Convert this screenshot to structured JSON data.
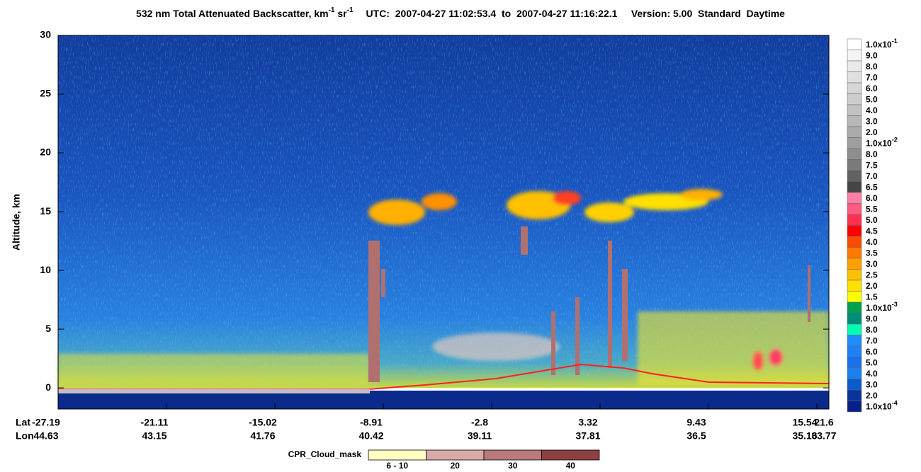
{
  "chart_data": {
    "type": "curtain",
    "title": {
      "text": "532 nm Total Attenuated Backscatter, km",
      "unit_exp": "-1",
      "unit2": " sr",
      "unit2_exp": "-1"
    },
    "subtitle": "UTC:  2007-04-27 11:02:53.4  to  2007-04-27 11:16:22.1     Version: 5.00  Standard  Daytime",
    "y_label": "Altitude, km",
    "ylim": [
      -1.8,
      30
    ],
    "yticks": [
      0,
      5,
      10,
      15,
      20,
      25,
      30
    ],
    "x_row_labels": [
      "Lat",
      "Lon"
    ],
    "x_ticks": [
      {
        "lat": -27.19,
        "lon": 44.63
      },
      {
        "lat": -21.11,
        "lon": 43.15
      },
      {
        "lat": -15.02,
        "lon": 41.76
      },
      {
        "lat": -8.91,
        "lon": 40.42
      },
      {
        "lat": -2.8,
        "lon": 39.11
      },
      {
        "lat": 3.32,
        "lon": 37.81
      },
      {
        "lat": 9.43,
        "lon": 36.5
      },
      {
        "lat": 15.54,
        "lon": 35.16
      },
      {
        "lat": 21.6,
        "lon": 33.77
      }
    ],
    "colorbar": [
      {
        "label": "1.0x10",
        "exp": "-1",
        "color": "#ffffff"
      },
      {
        "label": "9.0",
        "color": "#f4f4f4"
      },
      {
        "label": "8.0",
        "color": "#eaeaea"
      },
      {
        "label": "7.0",
        "color": "#e0e0e0"
      },
      {
        "label": "6.0",
        "color": "#d6d6d6"
      },
      {
        "label": "5.0",
        "color": "#cccccc"
      },
      {
        "label": "4.0",
        "color": "#c2c2c2"
      },
      {
        "label": "3.0",
        "color": "#b7b7b7"
      },
      {
        "label": "2.0",
        "color": "#ababab"
      },
      {
        "label": "1.0x10",
        "exp": "-2",
        "color": "#9e9e9e"
      },
      {
        "label": "8.0",
        "color": "#8e8e8e"
      },
      {
        "label": "7.5",
        "color": "#7a7a7a"
      },
      {
        "label": "7.0",
        "color": "#626262"
      },
      {
        "label": "6.5",
        "color": "#454545"
      },
      {
        "label": "6.0",
        "color": "#ff7fa6"
      },
      {
        "label": "5.5",
        "color": "#ff5a82"
      },
      {
        "label": "5.0",
        "color": "#ff3050"
      },
      {
        "label": "4.5",
        "color": "#ff0000"
      },
      {
        "label": "4.0",
        "color": "#ff4a00"
      },
      {
        "label": "3.5",
        "color": "#ff7a00"
      },
      {
        "label": "3.0",
        "color": "#ffa000"
      },
      {
        "label": "2.5",
        "color": "#ffc000"
      },
      {
        "label": "2.0",
        "color": "#ffe000"
      },
      {
        "label": "1.5",
        "color": "#ffff00"
      },
      {
        "label": "1.0x10",
        "exp": "-3",
        "color": "#00a050"
      },
      {
        "label": "9.0",
        "color": "#008c78"
      },
      {
        "label": "8.0",
        "color": "#00ffb0"
      },
      {
        "label": "7.0",
        "color": "#1e8cff"
      },
      {
        "label": "6.0",
        "color": "#2080f8"
      },
      {
        "label": "5.0",
        "color": "#1a70e8"
      },
      {
        "label": "4.0",
        "color": "#1a80f0"
      },
      {
        "label": "3.0",
        "color": "#0a5ccc"
      },
      {
        "label": "2.0",
        "color": "#08349c"
      },
      {
        "label": "1.0x10",
        "exp": "-4",
        "color": "#062088"
      }
    ],
    "cpr_legend": {
      "title": "CPR_Cloud_mask",
      "items": [
        {
          "label": "6 - 10",
          "color": "#ffffc4"
        },
        {
          "label": "20",
          "color": "#d8aaaa"
        },
        {
          "label": "30",
          "color": "#b87a7a"
        },
        {
          "label": "40",
          "color": "#8e4040"
        }
      ]
    }
  }
}
